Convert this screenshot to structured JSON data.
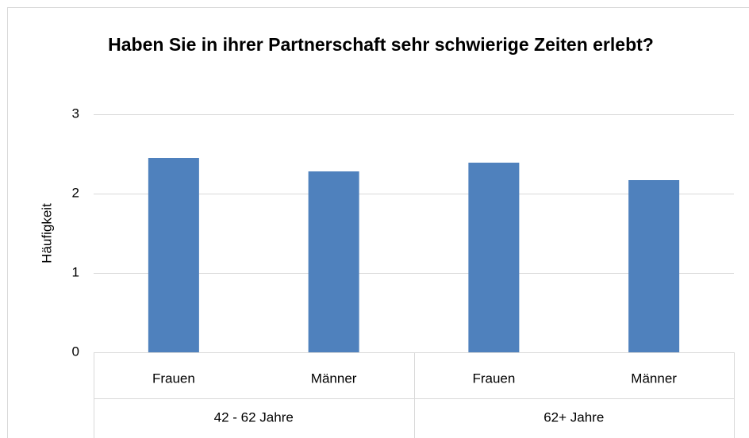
{
  "chart_data": {
    "type": "bar",
    "title": "Haben Sie in ihrer Partnerschaft sehr schwierige Zeiten erlebt?",
    "y_label": "Häufigkeit",
    "categories": [
      "Frauen",
      "Männer",
      "Frauen",
      "Männer"
    ],
    "groups": [
      "42 - 62 Jahre",
      "62+ Jahre"
    ],
    "values": [
      2.45,
      2.28,
      2.39,
      2.17
    ],
    "color": "#4f81bd",
    "ylim": [
      0,
      3
    ],
    "yticks": [
      0,
      1,
      2,
      3
    ],
    "grid": true
  }
}
